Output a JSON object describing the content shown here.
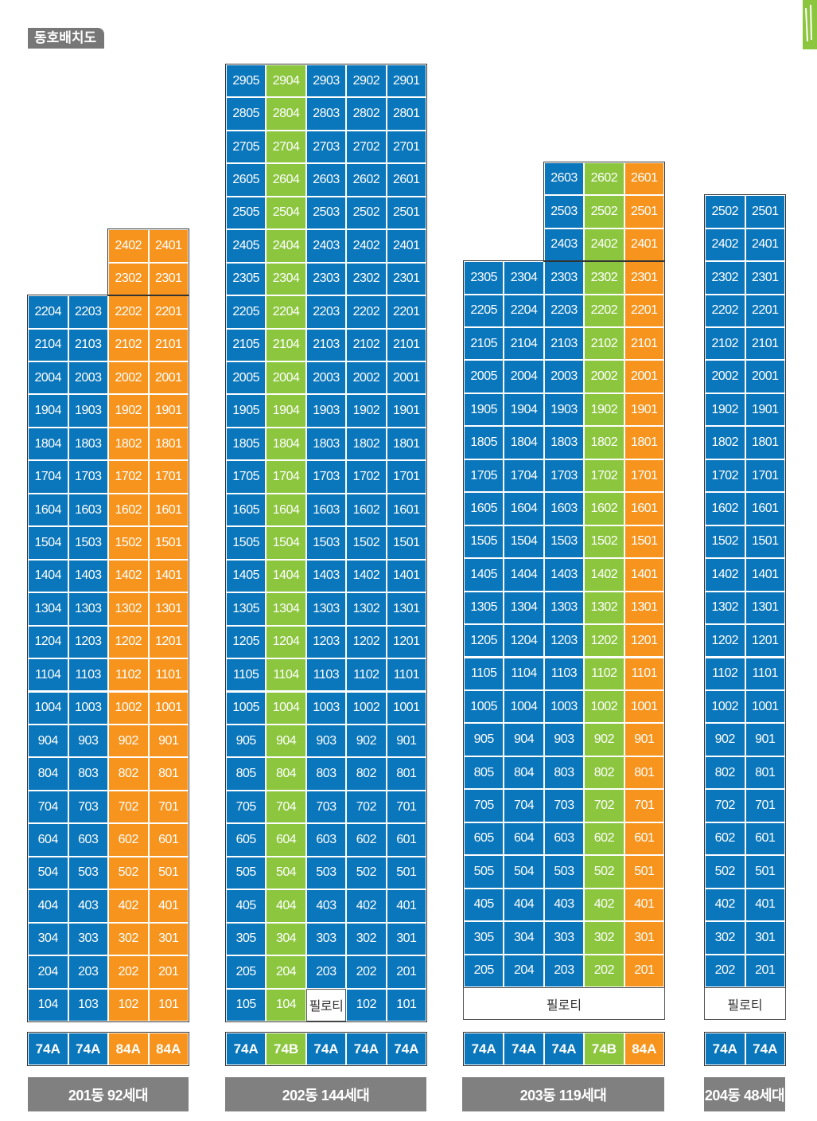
{
  "page_title": "동호배치도",
  "colors": {
    "blue": "#0a76bb",
    "green": "#8cc63f",
    "orange": "#f7941d",
    "label_bg": "#808080"
  },
  "buildings": [
    {
      "name": "201동 92세대",
      "units_per_floor": 4,
      "columns_color": [
        "blue",
        "blue",
        "orange",
        "orange"
      ],
      "floors": [
        [
          null,
          null,
          "2402",
          "2401"
        ],
        [
          null,
          null,
          "2302",
          "2301"
        ],
        [
          "2204",
          "2203",
          "2202",
          "2201"
        ],
        [
          "2104",
          "2103",
          "2102",
          "2101"
        ],
        [
          "2004",
          "2003",
          "2002",
          "2001"
        ],
        [
          "1904",
          "1903",
          "1902",
          "1901"
        ],
        [
          "1804",
          "1803",
          "1802",
          "1801"
        ],
        [
          "1704",
          "1703",
          "1702",
          "1701"
        ],
        [
          "1604",
          "1603",
          "1602",
          "1601"
        ],
        [
          "1504",
          "1503",
          "1502",
          "1501"
        ],
        [
          "1404",
          "1403",
          "1402",
          "1401"
        ],
        [
          "1304",
          "1303",
          "1302",
          "1301"
        ],
        [
          "1204",
          "1203",
          "1202",
          "1201"
        ],
        [
          "1104",
          "1103",
          "1102",
          "1101"
        ],
        [
          "1004",
          "1003",
          "1002",
          "1001"
        ],
        [
          "904",
          "903",
          "902",
          "901"
        ],
        [
          "804",
          "803",
          "802",
          "801"
        ],
        [
          "704",
          "703",
          "702",
          "701"
        ],
        [
          "604",
          "603",
          "602",
          "601"
        ],
        [
          "504",
          "503",
          "502",
          "501"
        ],
        [
          "404",
          "403",
          "402",
          "401"
        ],
        [
          "304",
          "303",
          "302",
          "301"
        ],
        [
          "204",
          "203",
          "202",
          "201"
        ],
        [
          "104",
          "103",
          "102",
          "101"
        ]
      ],
      "pilotis_row": null,
      "types": [
        {
          "label": "74A",
          "color": "blue"
        },
        {
          "label": "74A",
          "color": "blue"
        },
        {
          "label": "84A",
          "color": "orange"
        },
        {
          "label": "84A",
          "color": "orange"
        }
      ]
    },
    {
      "name": "202동 144세대",
      "units_per_floor": 5,
      "columns_color": [
        "blue",
        "green",
        "blue",
        "blue",
        "blue"
      ],
      "floors": [
        [
          "2905",
          "2904",
          "2903",
          "2902",
          "2901"
        ],
        [
          "2805",
          "2804",
          "2803",
          "2802",
          "2801"
        ],
        [
          "2705",
          "2704",
          "2703",
          "2702",
          "2701"
        ],
        [
          "2605",
          "2604",
          "2603",
          "2602",
          "2601"
        ],
        [
          "2505",
          "2504",
          "2503",
          "2502",
          "2501"
        ],
        [
          "2405",
          "2404",
          "2403",
          "2402",
          "2401"
        ],
        [
          "2305",
          "2304",
          "2303",
          "2302",
          "2301"
        ],
        [
          "2205",
          "2204",
          "2203",
          "2202",
          "2201"
        ],
        [
          "2105",
          "2104",
          "2103",
          "2102",
          "2101"
        ],
        [
          "2005",
          "2004",
          "2003",
          "2002",
          "2001"
        ],
        [
          "1905",
          "1904",
          "1903",
          "1902",
          "1901"
        ],
        [
          "1805",
          "1804",
          "1803",
          "1802",
          "1801"
        ],
        [
          "1705",
          "1704",
          "1703",
          "1702",
          "1701"
        ],
        [
          "1605",
          "1604",
          "1603",
          "1602",
          "1601"
        ],
        [
          "1505",
          "1504",
          "1503",
          "1502",
          "1501"
        ],
        [
          "1405",
          "1404",
          "1403",
          "1402",
          "1401"
        ],
        [
          "1305",
          "1304",
          "1303",
          "1302",
          "1301"
        ],
        [
          "1205",
          "1204",
          "1203",
          "1202",
          "1201"
        ],
        [
          "1105",
          "1104",
          "1103",
          "1102",
          "1101"
        ],
        [
          "1005",
          "1004",
          "1003",
          "1002",
          "1001"
        ],
        [
          "905",
          "904",
          "903",
          "902",
          "901"
        ],
        [
          "805",
          "804",
          "803",
          "802",
          "801"
        ],
        [
          "705",
          "704",
          "703",
          "702",
          "701"
        ],
        [
          "605",
          "604",
          "603",
          "602",
          "601"
        ],
        [
          "505",
          "504",
          "503",
          "502",
          "501"
        ],
        [
          "405",
          "404",
          "403",
          "402",
          "401"
        ],
        [
          "305",
          "304",
          "303",
          "302",
          "301"
        ],
        [
          "205",
          "204",
          "203",
          "202",
          "201"
        ],
        [
          "105",
          "104",
          "필로티",
          "102",
          "101"
        ]
      ],
      "pilotis_row": null,
      "types": [
        {
          "label": "74A",
          "color": "blue"
        },
        {
          "label": "74B",
          "color": "green"
        },
        {
          "label": "74A",
          "color": "blue"
        },
        {
          "label": "74A",
          "color": "blue"
        },
        {
          "label": "74A",
          "color": "blue"
        }
      ]
    },
    {
      "name": "203동 119세대",
      "units_per_floor": 5,
      "columns_color": [
        "blue",
        "blue",
        "blue",
        "green",
        "orange"
      ],
      "floors": [
        [
          null,
          null,
          "2603",
          "2602",
          "2601"
        ],
        [
          null,
          null,
          "2503",
          "2502",
          "2501"
        ],
        [
          null,
          null,
          "2403",
          "2402",
          "2401"
        ],
        [
          "2305",
          "2304",
          "2303",
          "2302",
          "2301"
        ],
        [
          "2205",
          "2204",
          "2203",
          "2202",
          "2201"
        ],
        [
          "2105",
          "2104",
          "2103",
          "2102",
          "2101"
        ],
        [
          "2005",
          "2004",
          "2003",
          "2002",
          "2001"
        ],
        [
          "1905",
          "1904",
          "1903",
          "1902",
          "1901"
        ],
        [
          "1805",
          "1804",
          "1803",
          "1802",
          "1801"
        ],
        [
          "1705",
          "1704",
          "1703",
          "1702",
          "1701"
        ],
        [
          "1605",
          "1604",
          "1603",
          "1602",
          "1601"
        ],
        [
          "1505",
          "1504",
          "1503",
          "1502",
          "1501"
        ],
        [
          "1405",
          "1404",
          "1403",
          "1402",
          "1401"
        ],
        [
          "1305",
          "1304",
          "1303",
          "1302",
          "1301"
        ],
        [
          "1205",
          "1204",
          "1203",
          "1202",
          "1201"
        ],
        [
          "1105",
          "1104",
          "1103",
          "1102",
          "1101"
        ],
        [
          "1005",
          "1004",
          "1003",
          "1002",
          "1001"
        ],
        [
          "905",
          "904",
          "903",
          "902",
          "901"
        ],
        [
          "805",
          "804",
          "803",
          "802",
          "801"
        ],
        [
          "705",
          "704",
          "703",
          "702",
          "701"
        ],
        [
          "605",
          "604",
          "603",
          "602",
          "601"
        ],
        [
          "505",
          "504",
          "503",
          "502",
          "501"
        ],
        [
          "405",
          "404",
          "403",
          "402",
          "401"
        ],
        [
          "305",
          "304",
          "303",
          "302",
          "301"
        ],
        [
          "205",
          "204",
          "203",
          "202",
          "201"
        ]
      ],
      "pilotis_row": "필로티",
      "types": [
        {
          "label": "74A",
          "color": "blue"
        },
        {
          "label": "74A",
          "color": "blue"
        },
        {
          "label": "74A",
          "color": "blue"
        },
        {
          "label": "74B",
          "color": "green"
        },
        {
          "label": "84A",
          "color": "orange"
        }
      ]
    },
    {
      "name": "204동 48세대",
      "units_per_floor": 2,
      "columns_color": [
        "blue",
        "blue"
      ],
      "floors": [
        [
          "2502",
          "2501"
        ],
        [
          "2402",
          "2401"
        ],
        [
          "2302",
          "2301"
        ],
        [
          "2202",
          "2201"
        ],
        [
          "2102",
          "2101"
        ],
        [
          "2002",
          "2001"
        ],
        [
          "1902",
          "1901"
        ],
        [
          "1802",
          "1801"
        ],
        [
          "1702",
          "1701"
        ],
        [
          "1602",
          "1601"
        ],
        [
          "1502",
          "1501"
        ],
        [
          "1402",
          "1401"
        ],
        [
          "1302",
          "1301"
        ],
        [
          "1202",
          "1201"
        ],
        [
          "1102",
          "1101"
        ],
        [
          "1002",
          "1001"
        ],
        [
          "902",
          "901"
        ],
        [
          "802",
          "801"
        ],
        [
          "702",
          "701"
        ],
        [
          "602",
          "601"
        ],
        [
          "502",
          "501"
        ],
        [
          "402",
          "401"
        ],
        [
          "302",
          "301"
        ],
        [
          "202",
          "201"
        ]
      ],
      "pilotis_row": "필로티",
      "types": [
        {
          "label": "74A",
          "color": "blue"
        },
        {
          "label": "74A",
          "color": "blue"
        }
      ]
    }
  ]
}
